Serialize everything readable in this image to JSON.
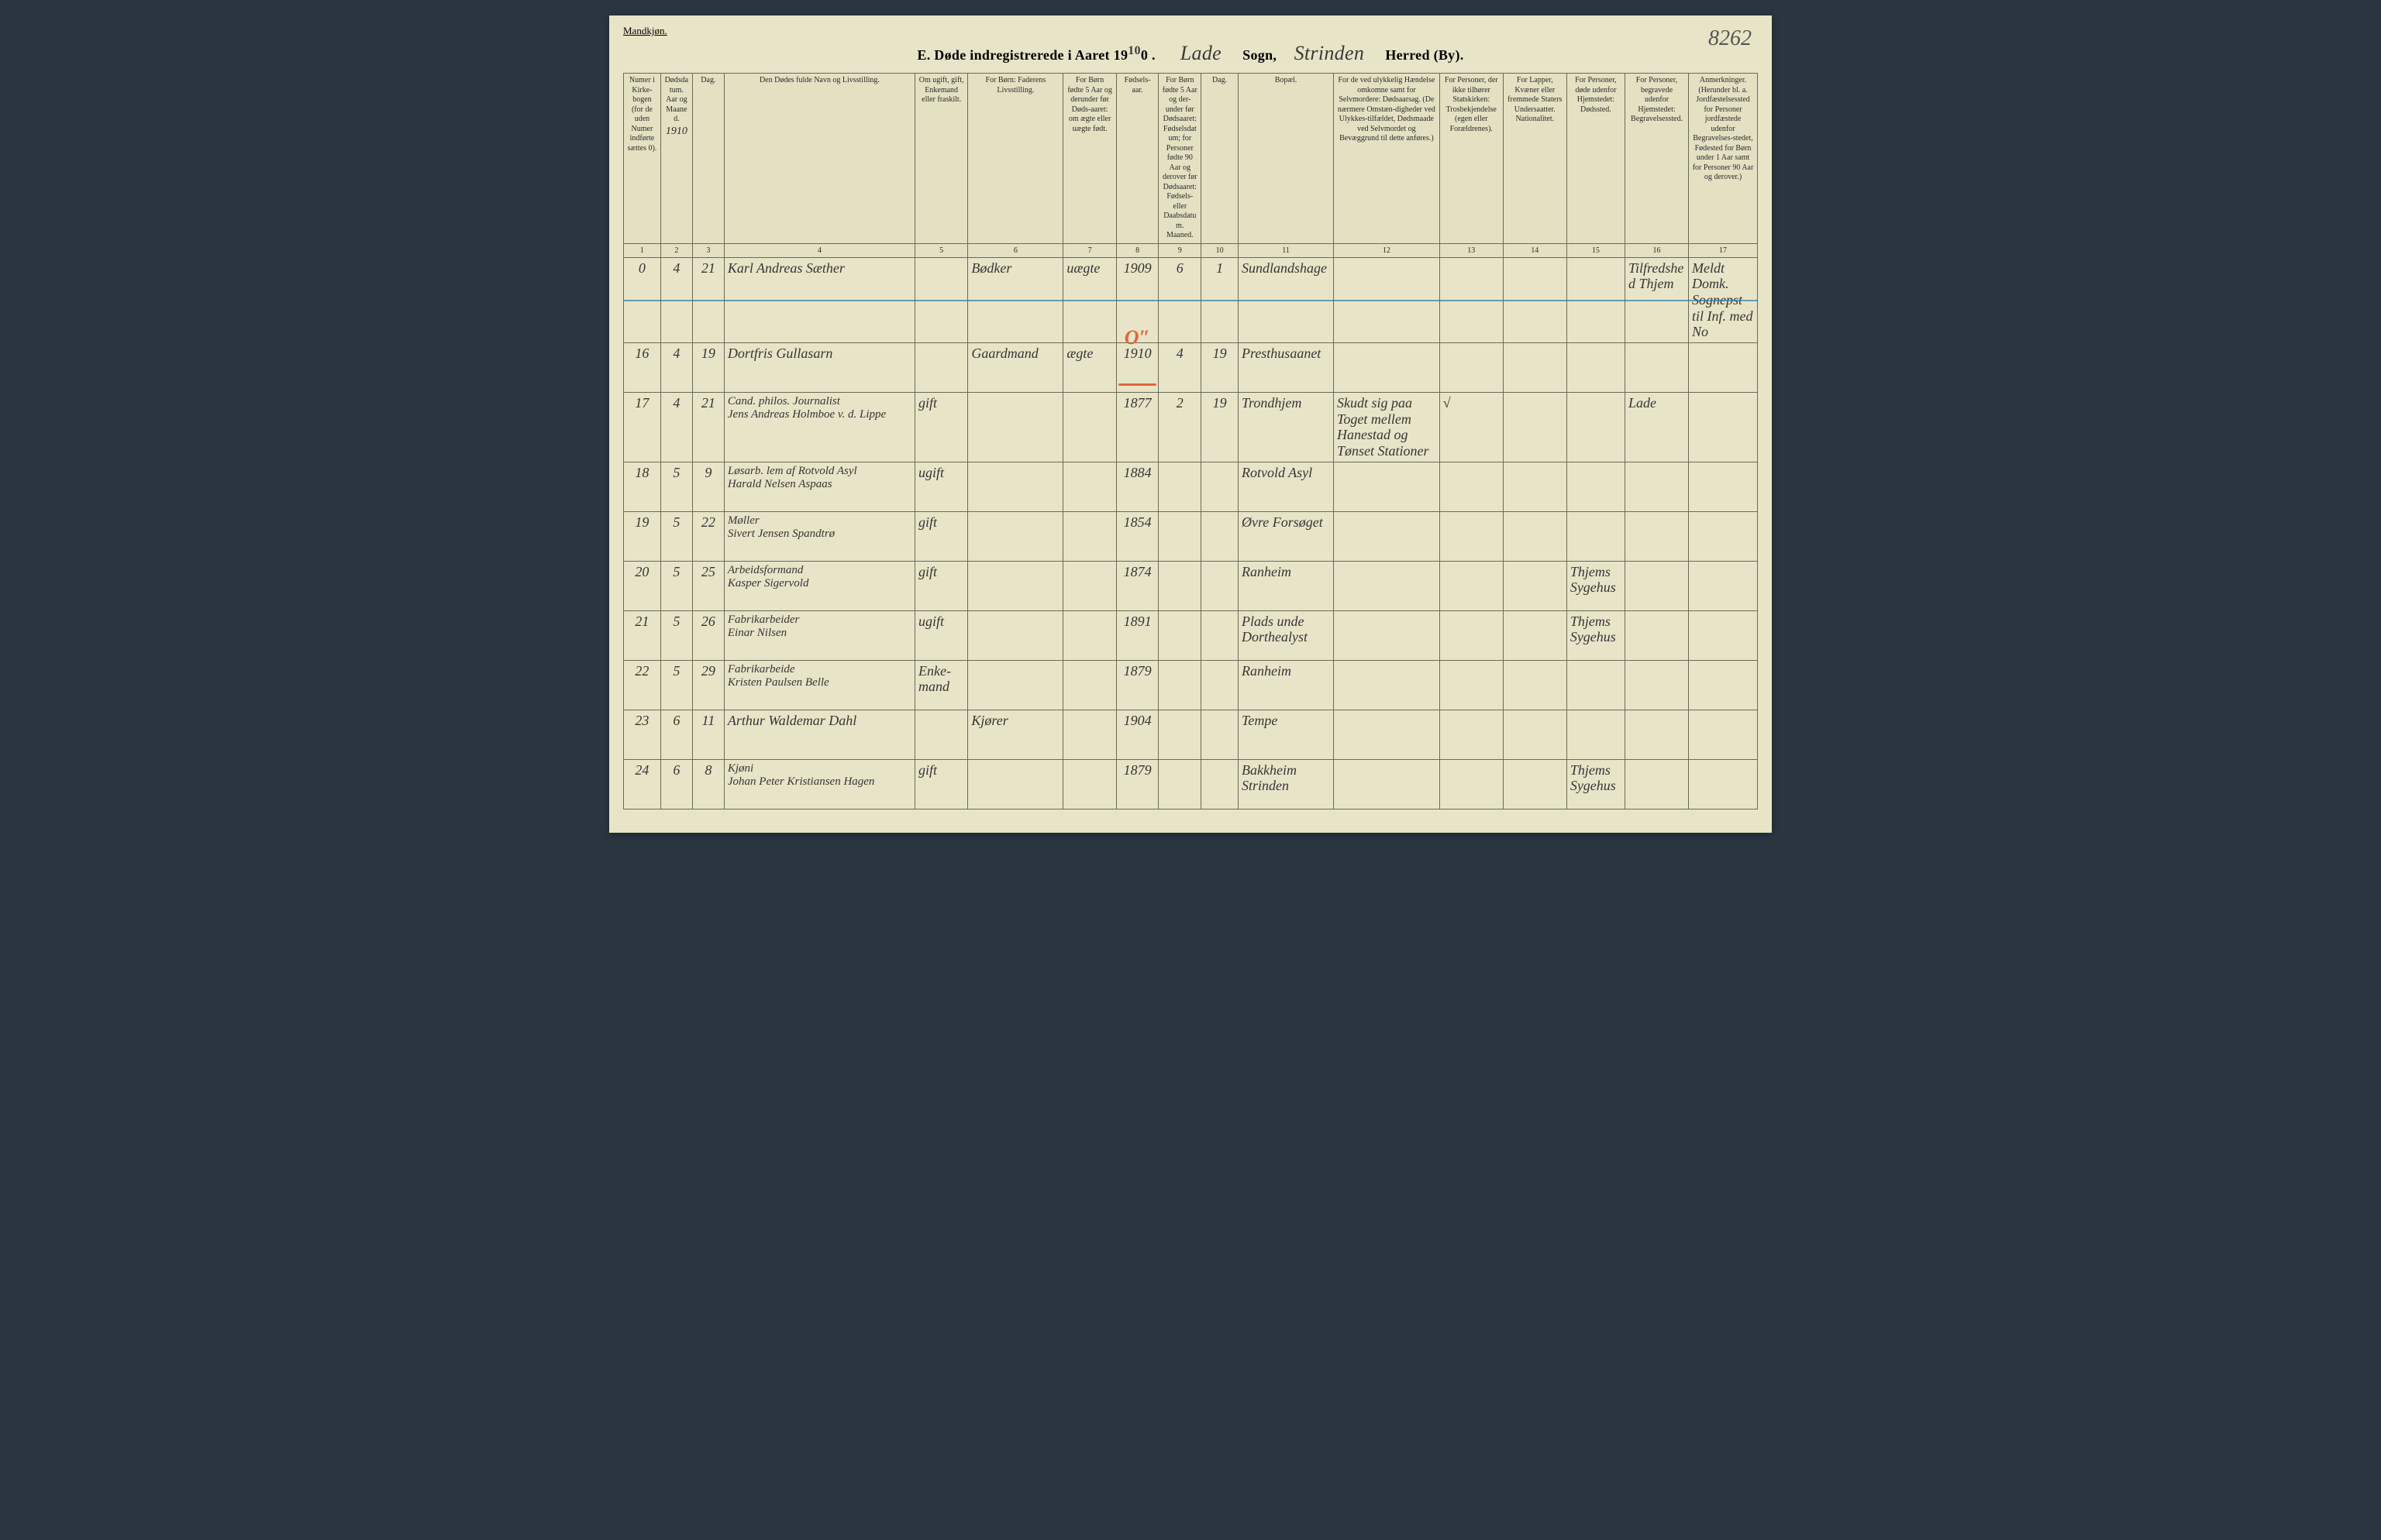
{
  "page": {
    "gender_label": "Mandkjøn.",
    "top_right_number": "8262",
    "title_prefix": "E.  Døde indregistrerede i Aaret 19",
    "title_year_sup": "10",
    "title_year_suffix": "0 .",
    "parish_label_word": "Sogn,",
    "parish": "Lade",
    "district": "Strinden",
    "district_label": "Herred (By).",
    "background_color": "#e8e4c8",
    "border_color": "#6a6a5a",
    "cursive_color": "#353535",
    "strike_color": "#2a7da8",
    "orange_color": "#e2643c"
  },
  "columns": {
    "widths_pct": [
      3.5,
      3,
      3,
      18,
      5,
      9,
      5,
      4,
      4,
      3.5,
      9,
      10,
      6,
      6,
      5.5,
      6,
      6.5
    ],
    "headers": [
      "Numer i Kirke-bogen (for de uden Numer indførte sættes 0).",
      "Dødsdatum. Aar og Maaned.",
      "Dag.",
      "Den Dødes fulde Navn og Livsstilling.",
      "Om ugift, gift, Enkemand eller fraskilt.",
      "For Børn: Faderens Livsstilling.",
      "For Børn fødte 5 Aar og derunder før Døds-aaret: om ægte eller uægte født.",
      "Fødsels-aar.",
      "For Børn fødte 5 Aar og der-under før Dødsaaret: Fødselsdatum; for Personer fødte 90 Aar og derover før Dødsaaret: Fødsels- eller Daabsdatum. Maaned.",
      "Dag.",
      "Bopæl.",
      "For de ved ulykkelig Hændelse omkomne samt for Selvmordere: Dødsaarsag. (De nærmere Omstæn-digheder ved Ulykkes-tilfældet, Dødsmaade ved Selvmordet og Bevæggrund til dette anføres.)",
      "For Personer, der ikke tilhører Statskirken: Trosbekjendelse (egen eller Forældrenes).",
      "For Lapper, Kvæner eller fremmede Staters Undersaatter. Nationalitet.",
      "For Personer, døde udenfor Hjemstedet: Dødssted.",
      "For Personer, begravede udenfor Hjemstedet: Begravelsessted.",
      "Anmerkninger. (Herunder bl. a. Jordfæstelsessted for Personer jordfæstede udenfor Begravelses-stedet, Fødested for Børn under 1 Aar samt for Personer 90 Aar og derover.)"
    ],
    "year_sublabel": "1910",
    "numbers": [
      "1",
      "2",
      "3",
      "4",
      "5",
      "6",
      "7",
      "8",
      "9",
      "10",
      "11",
      "12",
      "13",
      "14",
      "15",
      "16",
      "17"
    ]
  },
  "rows": [
    {
      "num": "0",
      "month": "4",
      "day": "21",
      "name": "Karl Andreas Sæther",
      "status": "",
      "father": "Bødker",
      "legit": "uægte",
      "birth_year": "1909",
      "bm": "6",
      "bd": "1",
      "residence": "Sundlandshage",
      "cause": "",
      "faith": "",
      "nat": "",
      "deathplace": "",
      "burial": "Tilfredshed Thjem",
      "remarks": "Meldt Domk. Sognepst til Inf. med No",
      "struck": true
    },
    {
      "num": "16",
      "month": "4",
      "day": "19",
      "name": "Dortfris Gullasarn",
      "status": "",
      "father": "Gaardmand",
      "legit": "ægte",
      "birth_year": "1910",
      "bm": "4",
      "bd": "19",
      "residence": "Presthusaanet",
      "cause": "",
      "faith": "",
      "nat": "",
      "deathplace": "",
      "burial": "",
      "remarks": "",
      "orange": true
    },
    {
      "num": "17",
      "month": "4",
      "day": "21",
      "name": "Cand. philos. Journalist\nJens Andreas Holmboe v. d. Lippe",
      "status": "gift",
      "father": "",
      "legit": "",
      "birth_year": "1877",
      "bm": "2",
      "bd": "19",
      "residence": "Trondhjem",
      "cause": "Skudt sig paa Toget mellem Hanestad og Tønset Stationer",
      "faith": "√",
      "nat": "",
      "deathplace": "",
      "burial": "Lade",
      "remarks": ""
    },
    {
      "num": "18",
      "month": "5",
      "day": "9",
      "name": "Løsarb. lem af Rotvold Asyl\nHarald Nelsen Aspaas",
      "status": "ugift",
      "father": "",
      "legit": "",
      "birth_year": "1884",
      "bm": "",
      "bd": "",
      "residence": "Rotvold Asyl",
      "cause": "",
      "faith": "",
      "nat": "",
      "deathplace": "",
      "burial": "",
      "remarks": ""
    },
    {
      "num": "19",
      "month": "5",
      "day": "22",
      "name": "Møller\nSivert Jensen Spandtrø",
      "status": "gift",
      "father": "",
      "legit": "",
      "birth_year": "1854",
      "bm": "",
      "bd": "",
      "residence": "Øvre Forsøget",
      "cause": "",
      "faith": "",
      "nat": "",
      "deathplace": "",
      "burial": "",
      "remarks": ""
    },
    {
      "num": "20",
      "month": "5",
      "day": "25",
      "name": "Arbeidsformand\nKasper Sigervold",
      "status": "gift",
      "father": "",
      "legit": "",
      "birth_year": "1874",
      "bm": "",
      "bd": "",
      "residence": "Ranheim",
      "cause": "",
      "faith": "",
      "nat": "",
      "deathplace": "Thjems Sygehus",
      "burial": "",
      "remarks": ""
    },
    {
      "num": "21",
      "month": "5",
      "day": "26",
      "name": "Fabrikarbeider\nEinar Nilsen",
      "status": "ugift",
      "father": "",
      "legit": "",
      "birth_year": "1891",
      "bm": "",
      "bd": "",
      "residence": "Plads unde Dorthealyst",
      "cause": "",
      "faith": "",
      "nat": "",
      "deathplace": "Thjems Sygehus",
      "burial": "",
      "remarks": ""
    },
    {
      "num": "22",
      "month": "5",
      "day": "29",
      "name": "Fabrikarbeide\nKristen Paulsen Belle",
      "status": "Enke-mand",
      "father": "",
      "legit": "",
      "birth_year": "1879",
      "bm": "",
      "bd": "",
      "residence": "Ranheim",
      "cause": "",
      "faith": "",
      "nat": "",
      "deathplace": "",
      "burial": "",
      "remarks": ""
    },
    {
      "num": "23",
      "month": "6",
      "day": "11",
      "name": "Arthur Waldemar Dahl",
      "status": "",
      "father": "Kjører",
      "legit": "",
      "birth_year": "1904",
      "bm": "",
      "bd": "",
      "residence": "Tempe",
      "cause": "",
      "faith": "",
      "nat": "",
      "deathplace": "",
      "burial": "",
      "remarks": ""
    },
    {
      "num": "24",
      "month": "6",
      "day": "8",
      "name": "Kjøni\nJohan Peter Kristiansen Hagen",
      "status": "gift",
      "father": "",
      "legit": "",
      "birth_year": "1879",
      "bm": "",
      "bd": "",
      "residence": "Bakkheim Strinden",
      "cause": "",
      "faith": "",
      "nat": "",
      "deathplace": "Thjems Sygehus",
      "burial": "",
      "remarks": ""
    }
  ]
}
